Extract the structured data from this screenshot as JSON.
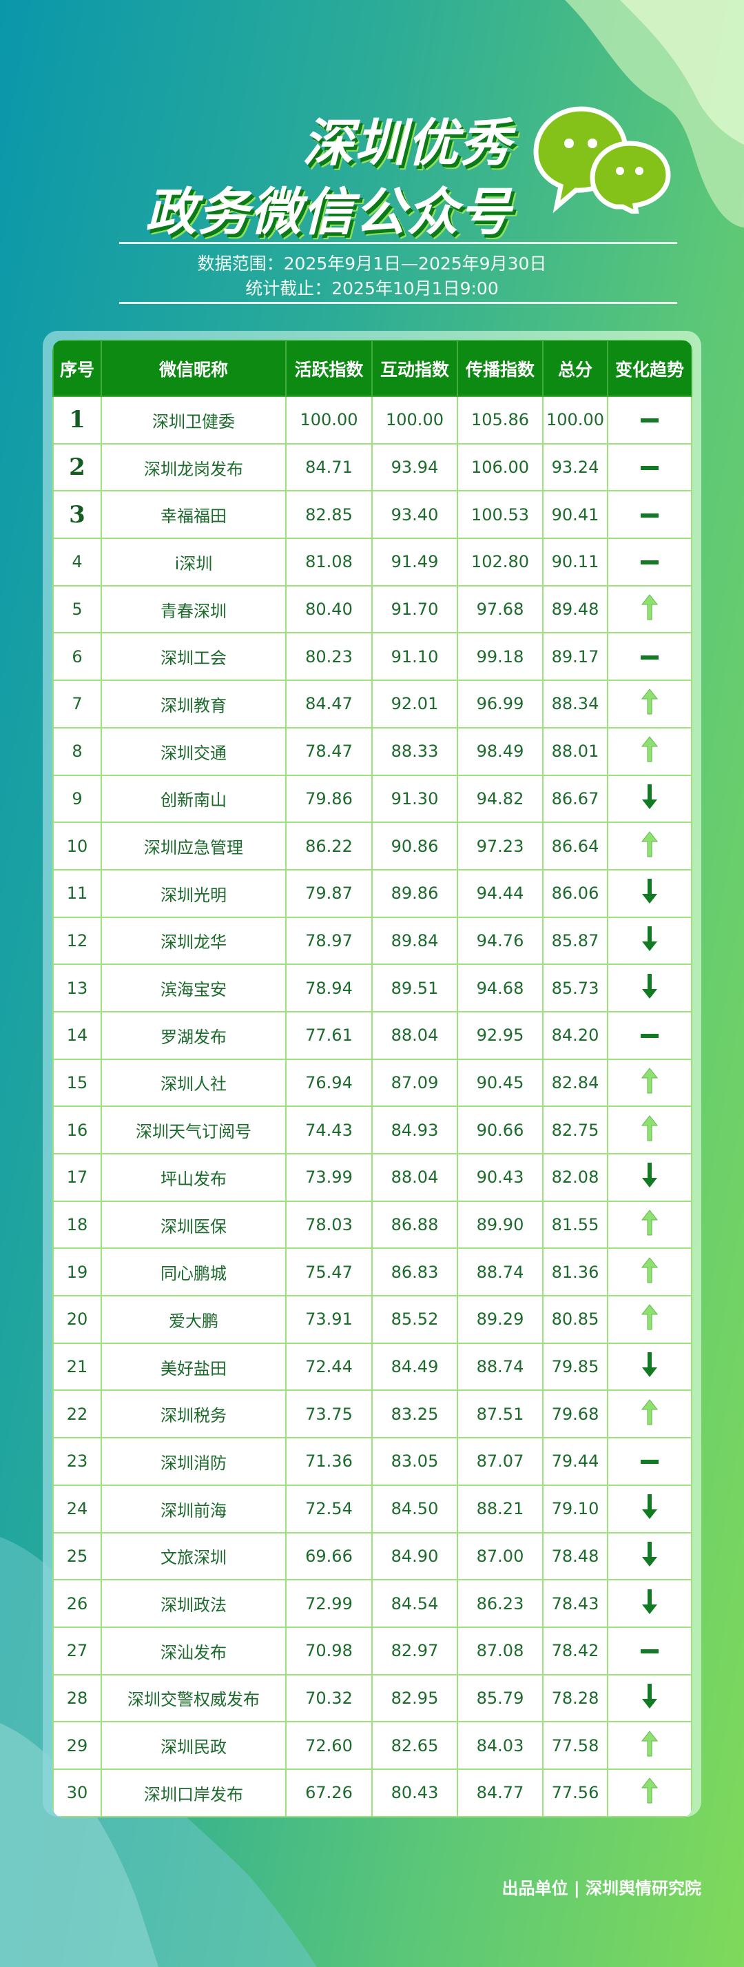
{
  "header": {
    "title_line1": "深圳优秀",
    "title_line2": "政务微信公众号",
    "date_range": "数据范围：2025年9月1日—2025年9月30日",
    "cutoff": "统计截止：2025年10月1日9:00",
    "logo_icon": "wechat-icon"
  },
  "colors": {
    "header_bg": "#0c8a12",
    "up": "#8ee070",
    "down": "#127a22",
    "same": "#127a22"
  },
  "table": {
    "columns": [
      "序号",
      "微信昵称",
      "活跃指数",
      "互动指数",
      "传播指数",
      "总分",
      "变化趋势"
    ],
    "rows": [
      {
        "rank": "1",
        "name": "深圳卫健委",
        "active": "100.00",
        "interact": "100.00",
        "spread": "105.86",
        "total": "100.00",
        "trend": "same"
      },
      {
        "rank": "2",
        "name": "深圳龙岗发布",
        "active": "84.71",
        "interact": "93.94",
        "spread": "106.00",
        "total": "93.24",
        "trend": "same"
      },
      {
        "rank": "3",
        "name": "幸福福田",
        "active": "82.85",
        "interact": "93.40",
        "spread": "100.53",
        "total": "90.41",
        "trend": "same"
      },
      {
        "rank": "4",
        "name": "i深圳",
        "active": "81.08",
        "interact": "91.49",
        "spread": "102.80",
        "total": "90.11",
        "trend": "same"
      },
      {
        "rank": "5",
        "name": "青春深圳",
        "active": "80.40",
        "interact": "91.70",
        "spread": "97.68",
        "total": "89.48",
        "trend": "up"
      },
      {
        "rank": "6",
        "name": "深圳工会",
        "active": "80.23",
        "interact": "91.10",
        "spread": "99.18",
        "total": "89.17",
        "trend": "same"
      },
      {
        "rank": "7",
        "name": "深圳教育",
        "active": "84.47",
        "interact": "92.01",
        "spread": "96.99",
        "total": "88.34",
        "trend": "up"
      },
      {
        "rank": "8",
        "name": "深圳交通",
        "active": "78.47",
        "interact": "88.33",
        "spread": "98.49",
        "total": "88.01",
        "trend": "up"
      },
      {
        "rank": "9",
        "name": "创新南山",
        "active": "79.86",
        "interact": "91.30",
        "spread": "94.82",
        "total": "86.67",
        "trend": "down"
      },
      {
        "rank": "10",
        "name": "深圳应急管理",
        "active": "86.22",
        "interact": "90.86",
        "spread": "97.23",
        "total": "86.64",
        "trend": "up"
      },
      {
        "rank": "11",
        "name": "深圳光明",
        "active": "79.87",
        "interact": "89.86",
        "spread": "94.44",
        "total": "86.06",
        "trend": "down"
      },
      {
        "rank": "12",
        "name": "深圳龙华",
        "active": "78.97",
        "interact": "89.84",
        "spread": "94.76",
        "total": "85.87",
        "trend": "down"
      },
      {
        "rank": "13",
        "name": "滨海宝安",
        "active": "78.94",
        "interact": "89.51",
        "spread": "94.68",
        "total": "85.73",
        "trend": "down"
      },
      {
        "rank": "14",
        "name": "罗湖发布",
        "active": "77.61",
        "interact": "88.04",
        "spread": "92.95",
        "total": "84.20",
        "trend": "same"
      },
      {
        "rank": "15",
        "name": "深圳人社",
        "active": "76.94",
        "interact": "87.09",
        "spread": "90.45",
        "total": "82.84",
        "trend": "up"
      },
      {
        "rank": "16",
        "name": "深圳天气订阅号",
        "active": "74.43",
        "interact": "84.93",
        "spread": "90.66",
        "total": "82.75",
        "trend": "up"
      },
      {
        "rank": "17",
        "name": "坪山发布",
        "active": "73.99",
        "interact": "88.04",
        "spread": "90.43",
        "total": "82.08",
        "trend": "down"
      },
      {
        "rank": "18",
        "name": "深圳医保",
        "active": "78.03",
        "interact": "86.88",
        "spread": "89.90",
        "total": "81.55",
        "trend": "up"
      },
      {
        "rank": "19",
        "name": "同心鹏城",
        "active": "75.47",
        "interact": "86.83",
        "spread": "88.74",
        "total": "81.36",
        "trend": "up"
      },
      {
        "rank": "20",
        "name": "爱大鹏",
        "active": "73.91",
        "interact": "85.52",
        "spread": "89.29",
        "total": "80.85",
        "trend": "up"
      },
      {
        "rank": "21",
        "name": "美好盐田",
        "active": "72.44",
        "interact": "84.49",
        "spread": "88.74",
        "total": "79.85",
        "trend": "down"
      },
      {
        "rank": "22",
        "name": "深圳税务",
        "active": "73.75",
        "interact": "83.25",
        "spread": "87.51",
        "total": "79.68",
        "trend": "up"
      },
      {
        "rank": "23",
        "name": "深圳消防",
        "active": "71.36",
        "interact": "83.05",
        "spread": "87.07",
        "total": "79.44",
        "trend": "same"
      },
      {
        "rank": "24",
        "name": "深圳前海",
        "active": "72.54",
        "interact": "84.50",
        "spread": "88.21",
        "total": "79.10",
        "trend": "down"
      },
      {
        "rank": "25",
        "name": "文旅深圳",
        "active": "69.66",
        "interact": "84.90",
        "spread": "87.00",
        "total": "78.48",
        "trend": "down"
      },
      {
        "rank": "26",
        "name": "深圳政法",
        "active": "72.99",
        "interact": "84.54",
        "spread": "86.23",
        "total": "78.43",
        "trend": "down"
      },
      {
        "rank": "27",
        "name": "深汕发布",
        "active": "70.98",
        "interact": "82.97",
        "spread": "87.08",
        "total": "78.42",
        "trend": "same"
      },
      {
        "rank": "28",
        "name": "深圳交警权威发布",
        "active": "70.32",
        "interact": "82.95",
        "spread": "85.79",
        "total": "78.28",
        "trend": "down"
      },
      {
        "rank": "29",
        "name": "深圳民政",
        "active": "72.60",
        "interact": "82.65",
        "spread": "84.03",
        "total": "77.58",
        "trend": "up"
      },
      {
        "rank": "30",
        "name": "深圳口岸发布",
        "active": "67.26",
        "interact": "80.43",
        "spread": "84.77",
        "total": "77.56",
        "trend": "up"
      }
    ]
  },
  "footer": {
    "credit": "出品单位 | 深圳舆情研究院"
  }
}
